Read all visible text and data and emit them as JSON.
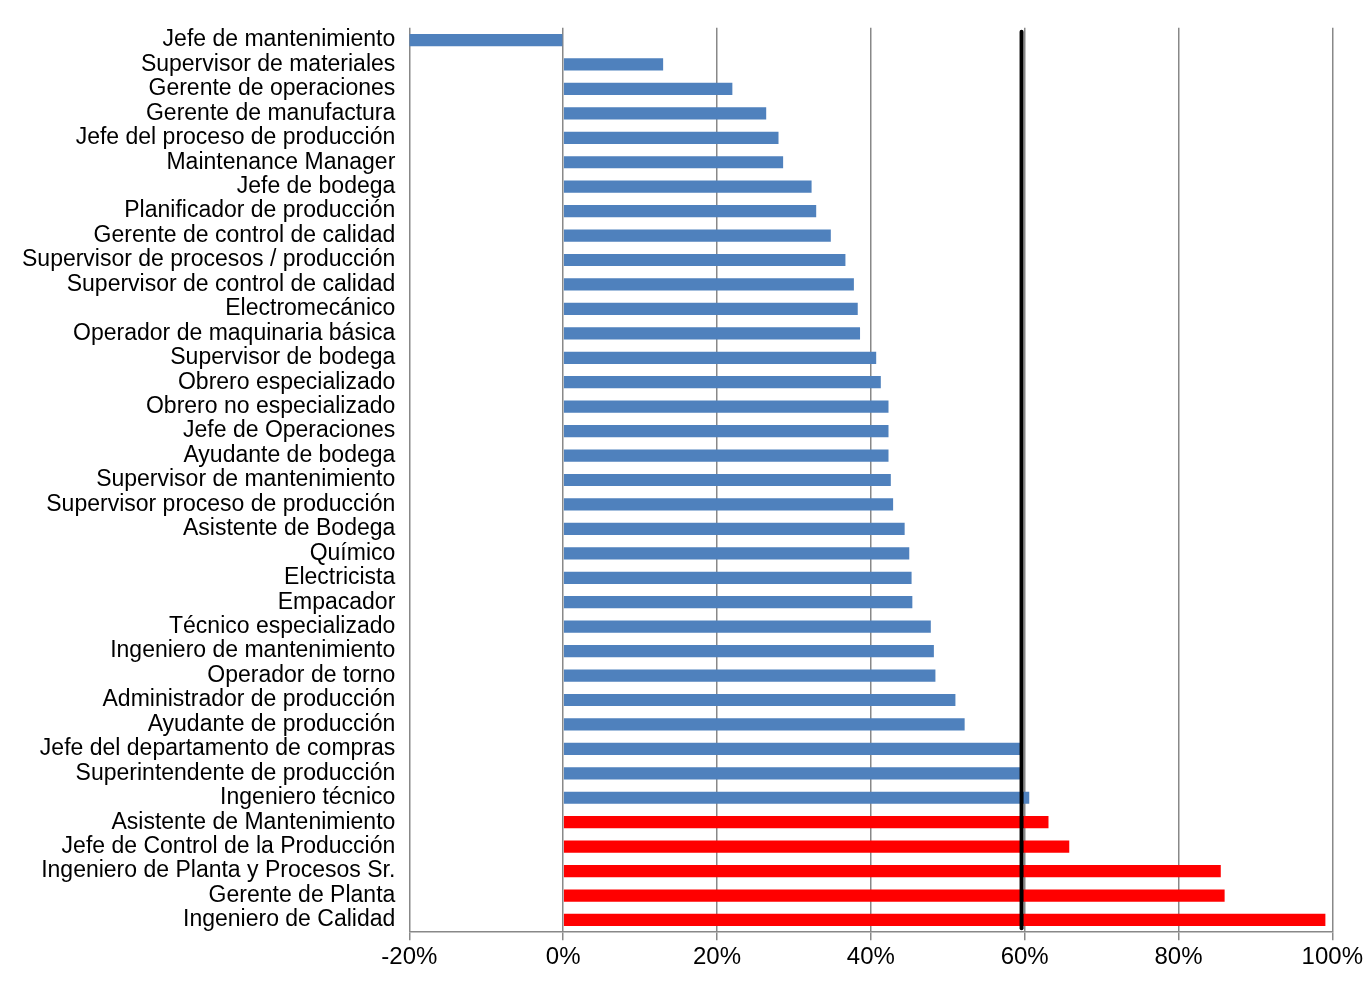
{
  "chart_data": {
    "type": "bar",
    "orientation": "horizontal",
    "categories": [
      "Jefe de mantenimiento",
      "Supervisor de materiales",
      "Gerente de operaciones",
      "Gerente de manufactura",
      "Jefe del proceso de producción",
      "Maintenance Manager",
      "Jefe de bodega",
      "Planificador de producción",
      "Gerente de control de calidad",
      "Supervisor de procesos / producción",
      "Supervisor de control de calidad",
      "Electromecánico",
      "Operador de maquinaria básica",
      "Supervisor de bodega",
      "Obrero especializado",
      "Obrero no especializado",
      "Jefe de Operaciones",
      "Ayudante de bodega",
      "Supervisor de mantenimiento",
      "Supervisor proceso de producción",
      "Asistente de Bodega",
      "Químico",
      "Electricista",
      "Empacador",
      "Técnico especializado",
      "Ingeniero de mantenimiento",
      "Operador de torno",
      "Administrador de producción",
      "Ayudante de producción",
      "Jefe del departamento de compras",
      "Superintendente de producción",
      "Ingeniero técnico",
      "Asistente de Mantenimiento",
      "Jefe de Control de la Producción",
      "Ingeniero de Planta y Procesos Sr.",
      "Gerente de Planta",
      "Ingeniero de Calidad"
    ],
    "values": [
      -20,
      13,
      22,
      26.4,
      28,
      28.6,
      32.3,
      32.9,
      34.8,
      36.7,
      37.8,
      38.3,
      38.6,
      40.7,
      41.3,
      42.3,
      42.3,
      42.3,
      42.6,
      42.9,
      44.4,
      45,
      45.3,
      45.4,
      47.8,
      48.2,
      48.4,
      51,
      52.2,
      59.4,
      59.7,
      60.6,
      63.1,
      65.8,
      85.5,
      86,
      99.1
    ],
    "colors": [
      "#4f81bd",
      "#4f81bd",
      "#4f81bd",
      "#4f81bd",
      "#4f81bd",
      "#4f81bd",
      "#4f81bd",
      "#4f81bd",
      "#4f81bd",
      "#4f81bd",
      "#4f81bd",
      "#4f81bd",
      "#4f81bd",
      "#4f81bd",
      "#4f81bd",
      "#4f81bd",
      "#4f81bd",
      "#4f81bd",
      "#4f81bd",
      "#4f81bd",
      "#4f81bd",
      "#4f81bd",
      "#4f81bd",
      "#4f81bd",
      "#4f81bd",
      "#4f81bd",
      "#4f81bd",
      "#4f81bd",
      "#4f81bd",
      "#4f81bd",
      "#4f81bd",
      "#4f81bd",
      "#ff0000",
      "#ff0000",
      "#ff0000",
      "#ff0000",
      "#ff0000"
    ],
    "xlim": [
      -20,
      100
    ],
    "xticks": [
      {
        "value": -20,
        "label": "-20%"
      },
      {
        "value": 0,
        "label": "0%"
      },
      {
        "value": 20,
        "label": "20%"
      },
      {
        "value": 40,
        "label": "40%"
      },
      {
        "value": 60,
        "label": "60%"
      },
      {
        "value": 80,
        "label": "80%"
      },
      {
        "value": 100,
        "label": "100%"
      }
    ],
    "ref_lines": [
      {
        "axis": "x",
        "value": 59.6,
        "color": "#000000"
      }
    ],
    "grid": "x",
    "legend": false
  }
}
